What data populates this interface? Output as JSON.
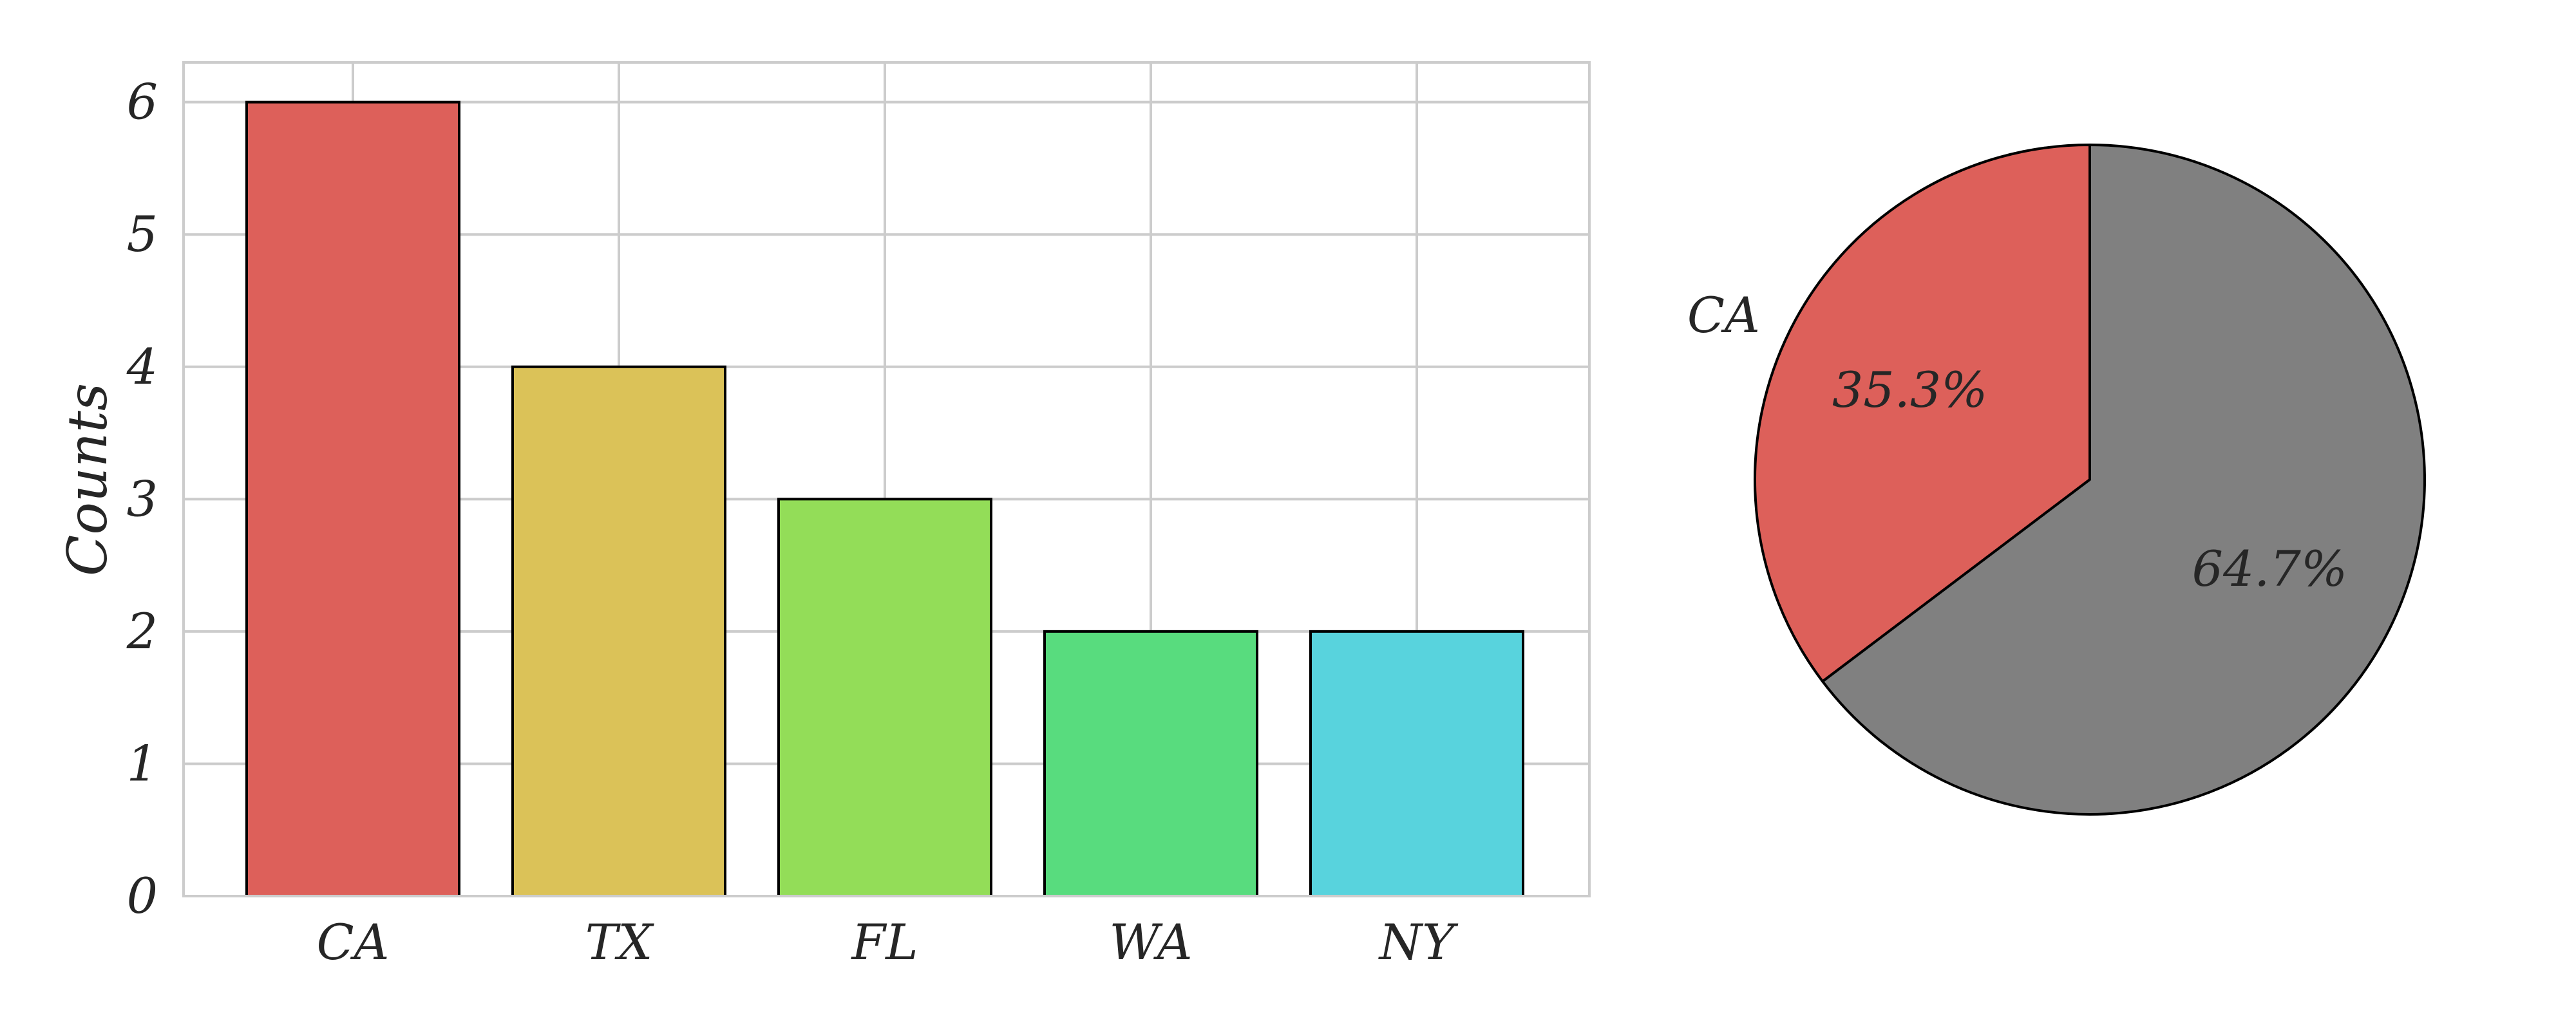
{
  "chart_data": [
    {
      "type": "bar",
      "categories": [
        "CA",
        "TX",
        "FL",
        "WA",
        "NY"
      ],
      "values": [
        6,
        4,
        3,
        2,
        2
      ],
      "colors": [
        "#dd605a",
        "#dbc258",
        "#93dd58",
        "#58dc7e",
        "#58d3dd"
      ],
      "edge_color": "#000000",
      "xlabel": "",
      "ylabel": "Counts",
      "yticks": [
        "0",
        "1",
        "2",
        "3",
        "4",
        "5",
        "6"
      ],
      "ylim": [
        0,
        6.3
      ],
      "grid": true
    },
    {
      "type": "pie",
      "slices": [
        {
          "label": "CA",
          "value": 35.3,
          "pct_label": "35.3%",
          "color": "#dd605a"
        },
        {
          "label": "",
          "value": 64.7,
          "pct_label": "64.7%",
          "color": "#808080"
        }
      ],
      "edge_color": "#000000"
    }
  ]
}
